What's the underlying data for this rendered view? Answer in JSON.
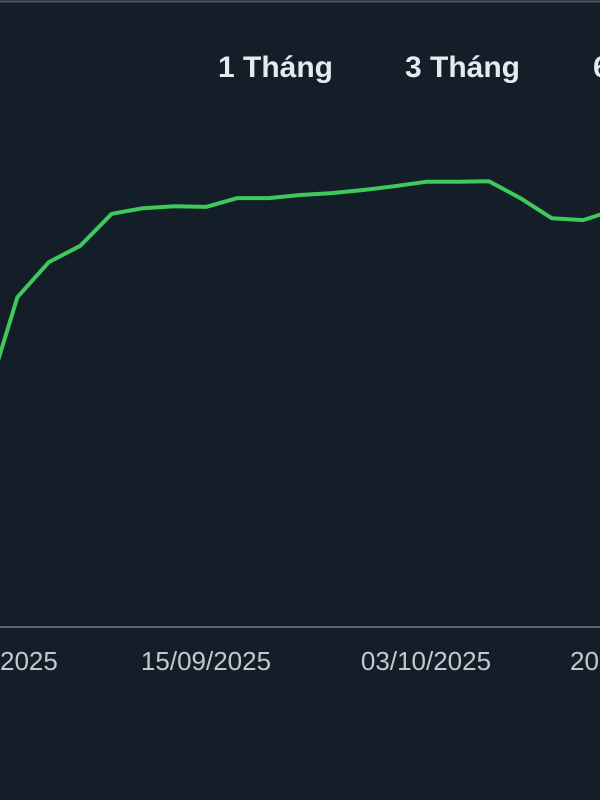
{
  "chart_data": {
    "type": "line",
    "ranges": [
      "1 Tháng",
      "3 Tháng",
      "6"
    ],
    "categories": [
      "2025",
      null,
      null,
      null,
      null,
      null,
      null,
      "15/09/2025",
      null,
      null,
      null,
      null,
      null,
      null,
      "03/10/2025",
      null,
      null,
      null,
      null,
      null,
      null,
      "20"
    ],
    "series": [
      {
        "color": "#3ec95a",
        "values": [
          36.2,
          52.6,
          58.2,
          60.8,
          65.9,
          66.8,
          67.1,
          67.0,
          68.4,
          68.4,
          68.9,
          69.2,
          69.7,
          70.3,
          71.0,
          71.0,
          71.1,
          68.4,
          65.2,
          64.9,
          66.5,
          null
        ]
      }
    ],
    "ylim": [
      0,
      100
    ]
  }
}
